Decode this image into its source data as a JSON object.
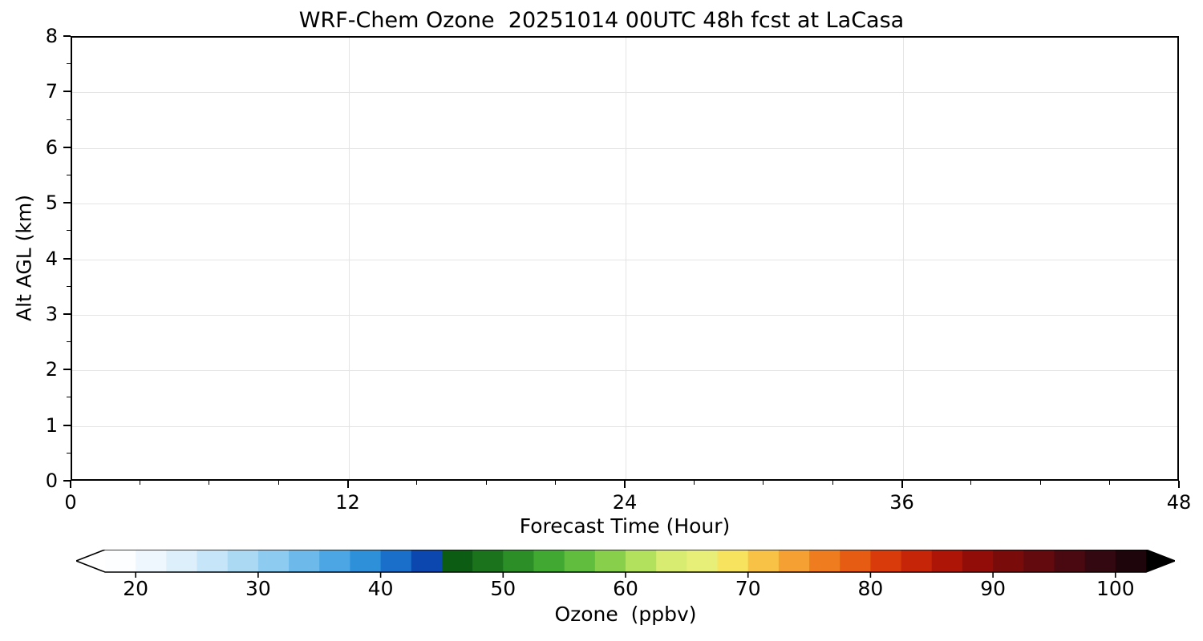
{
  "figure": {
    "title": "WRF-Chem Ozone  20251014 00UTC 48h fcst at LaCasa"
  },
  "chart_data": {
    "type": "heatmap",
    "title": "WRF-Chem Ozone  20251014 00UTC 48h fcst at LaCasa",
    "xlabel": "Forecast Time (Hour)",
    "ylabel": "Alt AGL (km)",
    "xlim": [
      0,
      48
    ],
    "ylim": [
      0,
      8
    ],
    "x_ticks": [
      0,
      12,
      24,
      36,
      48
    ],
    "y_ticks": [
      0,
      1,
      2,
      3,
      4,
      5,
      6,
      7,
      8
    ],
    "x_minor_step": 3,
    "y_minor_step": 0.5,
    "grid": true,
    "series": [],
    "colorbar": {
      "label": "Ozone  (ppbv)",
      "ticks": [
        20,
        30,
        40,
        50,
        60,
        70,
        80,
        90,
        100
      ],
      "vmin": 17.5,
      "vmax": 102.5,
      "extend": "both",
      "extend_low_color": "#ffffff",
      "extend_high_color": "#000000",
      "colors": [
        "#fcfeff",
        "#eef7fd",
        "#dceffb",
        "#c6e5f8",
        "#abd9f4",
        "#8dcbf0",
        "#6cb9ea",
        "#4ba6e3",
        "#2f90da",
        "#1a6fca",
        "#0c47b0",
        "#0d5c13",
        "#1b741c",
        "#2b8e26",
        "#41a831",
        "#60bd3d",
        "#88d04c",
        "#b2e15e",
        "#d8ec72",
        "#e8ef78",
        "#f7e35e",
        "#f8c247",
        "#f5a032",
        "#ef7d1f",
        "#e65c12",
        "#d93c0a",
        "#c62507",
        "#ad1507",
        "#920d08",
        "#7a0b0b",
        "#620a0e",
        "#4a0910",
        "#340810",
        "#1d050b"
      ]
    }
  }
}
